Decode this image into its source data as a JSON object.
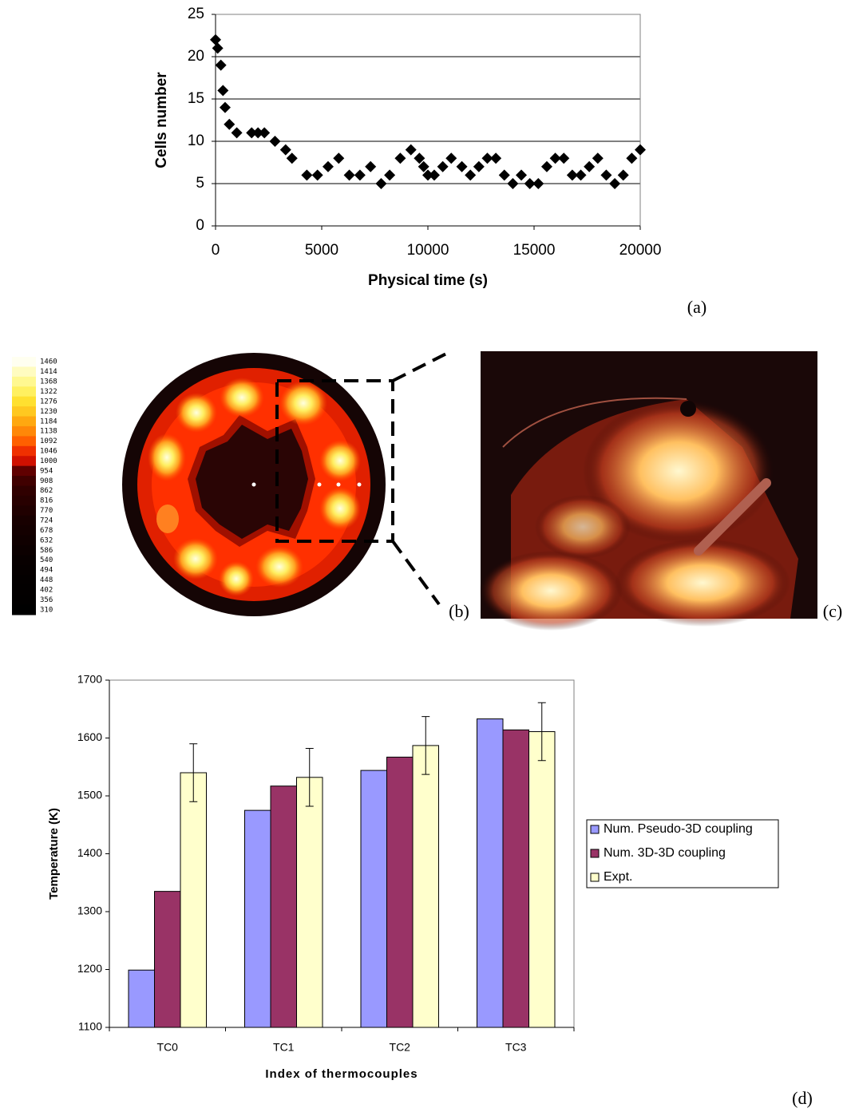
{
  "chart_data": [
    {
      "type": "scatter",
      "xlabel": "Physical time (s)",
      "ylabel": "Cells number",
      "x": [
        0,
        100,
        250,
        350,
        450,
        650,
        1000,
        1700,
        2000,
        2300,
        2800,
        3300,
        3600,
        4300,
        4800,
        5300,
        5800,
        6300,
        6800,
        7300,
        7800,
        8200,
        8700,
        9200,
        9600,
        9800,
        10000,
        10300,
        10700,
        11100,
        11600,
        12000,
        12400,
        12800,
        13200,
        13600,
        14000,
        14400,
        14800,
        15200,
        15600,
        16000,
        16400,
        16800,
        17200,
        17600,
        18000,
        18400,
        18800,
        19200,
        19600,
        20000
      ],
      "values": [
        22,
        21,
        19,
        16,
        14,
        12,
        11,
        11,
        11,
        11,
        10,
        9,
        8,
        6,
        6,
        7,
        8,
        6,
        6,
        7,
        5,
        6,
        8,
        9,
        8,
        7,
        6,
        6,
        7,
        8,
        7,
        6,
        7,
        8,
        8,
        6,
        5,
        6,
        5,
        5,
        7,
        8,
        8,
        6,
        6,
        7,
        8,
        6,
        5,
        6,
        8,
        9
      ],
      "color": "#000000",
      "xlim": [
        0,
        20000
      ],
      "xticks": [
        0,
        5000,
        10000,
        15000,
        20000
      ],
      "ylim": [
        0,
        25
      ],
      "yticks": [
        0,
        5,
        10,
        15,
        20,
        25
      ],
      "grid": true
    },
    {
      "type": "bar",
      "xlabel": "Index of thermocouples",
      "ylabel": "Temperature (K)",
      "categories": [
        "TC0",
        "TC1",
        "TC2",
        "TC3"
      ],
      "series": [
        {
          "name": "Num. Pseudo-3D coupling",
          "color": "#9999ff",
          "values": [
            1199,
            1475,
            1544,
            1633
          ]
        },
        {
          "name": "Num. 3D-3D coupling",
          "color": "#993366",
          "values": [
            1335,
            1517,
            1567,
            1614
          ]
        },
        {
          "name": "Expt.",
          "color": "#ffffcc",
          "values": [
            1540,
            1532,
            1587,
            1611
          ],
          "errors": [
            50,
            50,
            50,
            50
          ]
        }
      ],
      "ylim": [
        1100,
        1700
      ],
      "yticks": [
        1100,
        1200,
        1300,
        1400,
        1500,
        1600,
        1700
      ],
      "legend": "right"
    }
  ],
  "panel_labels": [
    "(a)",
    "(b)",
    "(c)",
    "(d)"
  ],
  "colorbar": {
    "labels": [
      1460,
      1414,
      1368,
      1322,
      1276,
      1230,
      1184,
      1138,
      1092,
      1046,
      1000,
      954,
      908,
      862,
      816,
      770,
      724,
      678,
      632,
      586,
      540,
      494,
      448,
      402,
      356,
      310
    ]
  }
}
